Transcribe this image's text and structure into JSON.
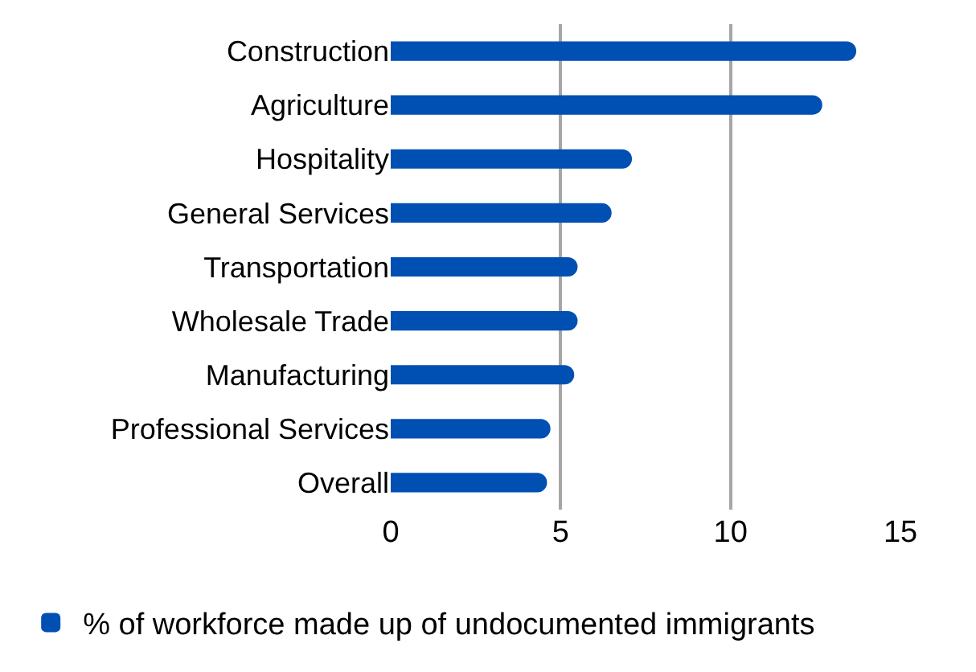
{
  "chart_data": {
    "type": "bar",
    "orientation": "horizontal",
    "categories": [
      "Construction",
      "Agriculture",
      "Hospitality",
      "General Services",
      "Transportation",
      "Wholesale Trade",
      "Manufacturing",
      "Professional Services",
      "Overall"
    ],
    "series": [
      {
        "name": "% of workforce made up of undocumented immigrants",
        "color": "#0050b4",
        "values": [
          13.7,
          12.7,
          7.1,
          6.5,
          5.5,
          5.5,
          5.4,
          4.7,
          4.6
        ]
      }
    ],
    "xlim": [
      0,
      15
    ],
    "xticks": [
      0,
      5,
      10,
      15
    ],
    "grid": "x",
    "legend": "bottom left"
  }
}
